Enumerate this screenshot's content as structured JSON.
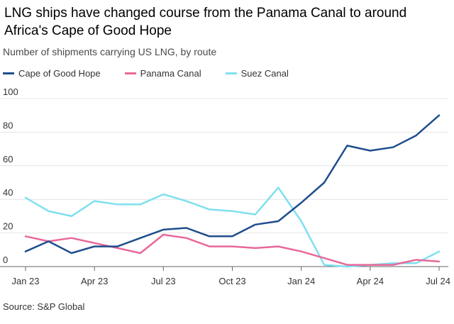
{
  "chart_data": {
    "type": "line",
    "title": "LNG ships have changed course from the Panama Canal to around Africa's Cape of Good Hope",
    "subtitle": "Number of shipments carrying US LNG, by route",
    "source": "Source: S&P Global",
    "xlabel": "",
    "ylabel": "",
    "ylim": [
      0,
      100
    ],
    "yticks": [
      0,
      20,
      40,
      60,
      80,
      100
    ],
    "x_ticks": [
      {
        "index": 0,
        "label": "Jan 23"
      },
      {
        "index": 3,
        "label": "Apr 23"
      },
      {
        "index": 6,
        "label": "Jul 23"
      },
      {
        "index": 9,
        "label": "Oct 23"
      },
      {
        "index": 12,
        "label": "Jan 24"
      },
      {
        "index": 15,
        "label": "Apr 24"
      },
      {
        "index": 18,
        "label": "Jul 24"
      }
    ],
    "x_count": 19,
    "grid": true,
    "legend_position": "top-left",
    "series": [
      {
        "name": "Cape of Good Hope",
        "color": "#1f4e8c",
        "values": [
          9,
          15,
          8,
          12,
          12,
          17,
          22,
          23,
          18,
          18,
          25,
          27,
          38,
          50,
          72,
          69,
          71,
          78,
          90
        ]
      },
      {
        "name": "Panama Canal",
        "color": "#e8689a",
        "values": [
          18,
          15,
          17,
          14,
          11,
          8,
          19,
          17,
          12,
          12,
          11,
          12,
          9,
          5,
          1,
          1,
          1,
          4,
          3
        ]
      },
      {
        "name": "Suez Canal",
        "color": "#7ee0ee",
        "values": [
          41,
          33,
          30,
          39,
          37,
          37,
          43,
          39,
          34,
          33,
          31,
          47,
          27,
          1,
          0,
          1,
          2,
          2,
          9
        ]
      }
    ]
  }
}
